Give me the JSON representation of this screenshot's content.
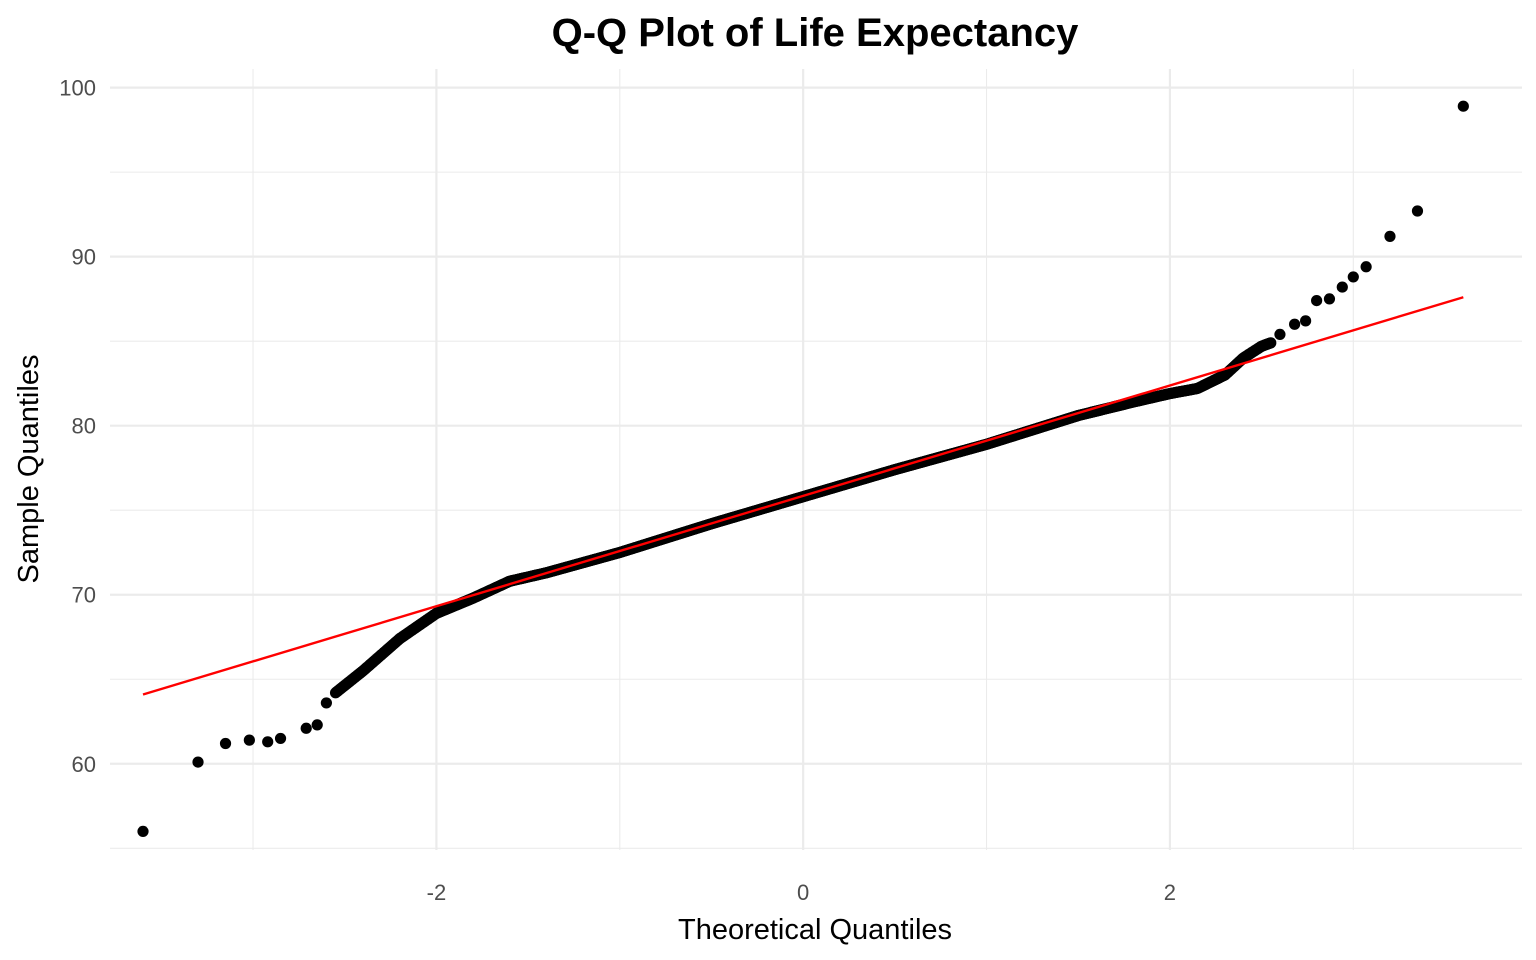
{
  "chart_data": {
    "type": "scatter",
    "title": "Q-Q Plot of Life Expectancy",
    "xlabel": "Theoretical Quantiles",
    "ylabel": "Sample Quantiles",
    "xlim": [
      -3.78,
      3.92
    ],
    "ylim": [
      54.9,
      101.1
    ],
    "x_ticks": [
      -2,
      0,
      2
    ],
    "x_tick_labels": [
      "-2",
      "0",
      "2"
    ],
    "y_ticks": [
      60,
      70,
      80,
      90,
      100
    ],
    "y_tick_labels": [
      "60",
      "70",
      "80",
      "90",
      "100"
    ],
    "grid": true,
    "colors": {
      "points": "#000000",
      "reference_line": "#ff0000",
      "grid": "#ebebeb"
    },
    "reference_line": {
      "x": [
        -3.6,
        3.6
      ],
      "y": [
        64.1,
        87.6
      ]
    },
    "tail_points": {
      "x": [
        -3.6,
        -3.3,
        -3.15,
        -3.02,
        -2.92,
        -2.85,
        -2.71,
        -2.65,
        -2.6,
        2.6,
        2.68,
        2.74,
        2.8,
        2.87,
        2.94,
        3.0,
        3.07,
        3.2,
        3.35,
        3.6
      ],
      "y": [
        56.0,
        60.1,
        61.2,
        61.4,
        61.3,
        61.5,
        62.1,
        62.3,
        63.6,
        85.4,
        86.0,
        86.2,
        87.4,
        87.5,
        88.2,
        88.8,
        89.4,
        91.2,
        92.7,
        98.9
      ]
    },
    "body_points": {
      "x_range": [
        -2.55,
        2.55
      ],
      "quantile_breakpoints": {
        "x": [
          -2.55,
          -2.4,
          -2.2,
          -2.0,
          -1.8,
          -1.6,
          -1.4,
          -1.0,
          -0.5,
          0,
          0.5,
          1.0,
          1.5,
          1.8,
          2.0,
          2.15,
          2.3,
          2.4,
          2.5,
          2.55
        ],
        "y": [
          64.2,
          65.5,
          67.4,
          68.9,
          69.8,
          70.8,
          71.3,
          72.5,
          74.2,
          75.8,
          77.4,
          78.9,
          80.6,
          81.4,
          81.9,
          82.2,
          83.0,
          84.0,
          84.7,
          84.9
        ]
      }
    }
  }
}
